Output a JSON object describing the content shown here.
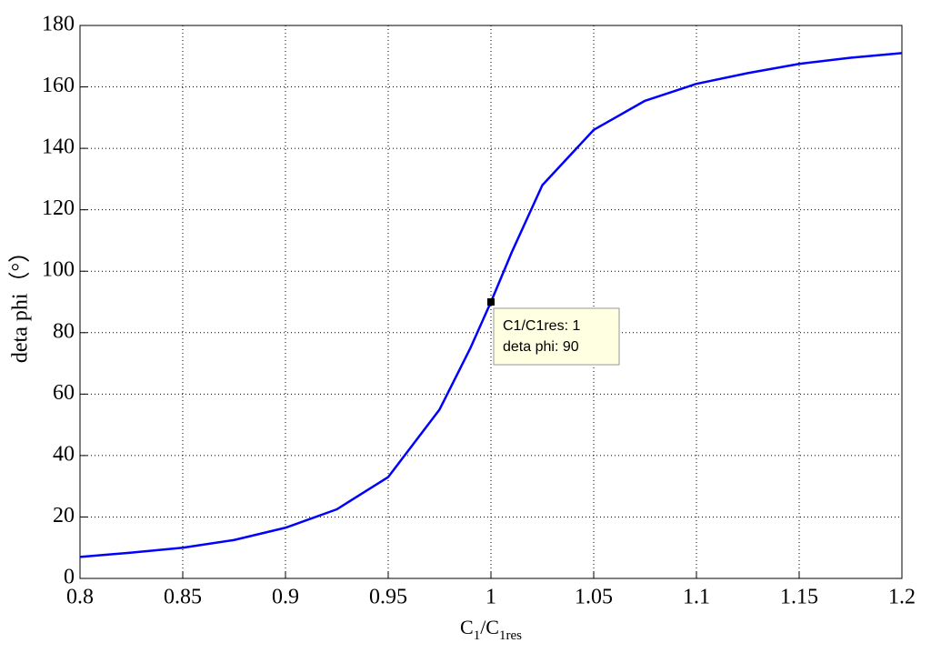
{
  "chart_data": {
    "type": "line",
    "xlabel": [
      "C",
      "1",
      "/C",
      "1res"
    ],
    "ylabel": "deta phi（°）",
    "x": [
      0.8,
      0.825,
      0.85,
      0.875,
      0.9,
      0.925,
      0.95,
      0.975,
      0.99,
      1.0,
      1.01,
      1.025,
      1.05,
      1.075,
      1.1,
      1.125,
      1.15,
      1.175,
      1.2
    ],
    "series": [
      {
        "name": "deta phi",
        "color": "#0000ff",
        "values": [
          7,
          8.4,
          10,
          12.5,
          16.5,
          22.5,
          33,
          55,
          75,
          90,
          106,
          128,
          146,
          155.5,
          161,
          164.5,
          167.5,
          169.5,
          171
        ]
      }
    ],
    "xlim": [
      0.8,
      1.2
    ],
    "xticks": [
      0.8,
      0.85,
      0.9,
      0.95,
      1,
      1.05,
      1.1,
      1.15,
      1.2
    ],
    "ylim": [
      0,
      180
    ],
    "yticks": [
      0,
      20,
      40,
      60,
      80,
      100,
      120,
      140,
      160,
      180
    ],
    "grid": true,
    "datatip": {
      "x": 1,
      "y": 90,
      "lines": [
        "C1/C1res: 1",
        "deta phi: 90"
      ]
    }
  }
}
